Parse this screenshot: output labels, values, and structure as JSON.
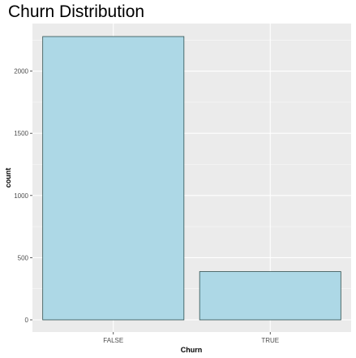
{
  "chart_data": {
    "type": "bar",
    "title": "Churn Distribution",
    "xlabel": "Churn",
    "ylabel": "count",
    "categories": [
      "FALSE",
      "TRUE"
    ],
    "values": [
      2278,
      388
    ],
    "ylim": [
      0,
      2390
    ],
    "y_ticks": [
      0,
      500,
      1000,
      1500,
      2000
    ],
    "grid": true,
    "bar_fill_color": "#add8e6",
    "bar_outline_color": "#2f4f4f",
    "panel_background_color": "#ebebeb",
    "grid_color": "#ffffff"
  }
}
